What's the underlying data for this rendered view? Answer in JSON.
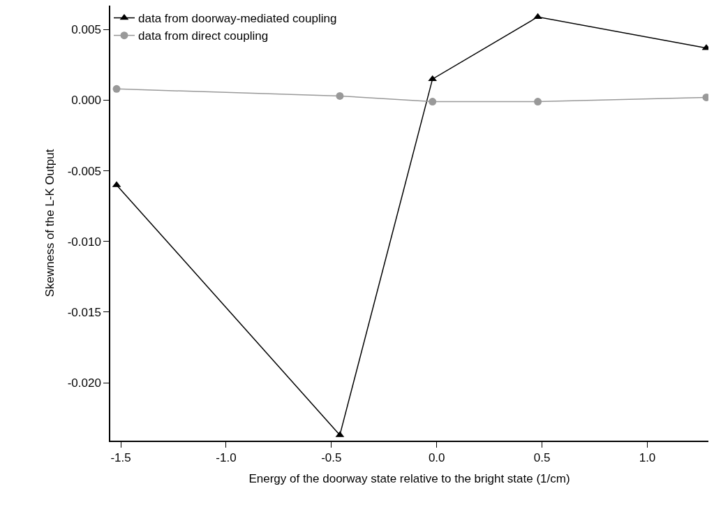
{
  "chart_data": {
    "type": "line",
    "xlabel": "Energy of the doorway state relative to the bright state (1/cm)",
    "ylabel": "Skewness of the L-K Output",
    "x": [
      -1.52,
      -0.46,
      -0.02,
      0.48,
      1.28
    ],
    "series": [
      {
        "name": "data from doorway-mediated coupling",
        "color": "#000000",
        "marker": "triangle",
        "values": [
          -0.006,
          -0.0237,
          0.0015,
          0.0059,
          0.0037
        ]
      },
      {
        "name": "data from direct coupling",
        "color": "#999999",
        "marker": "circle",
        "values": [
          0.0008,
          0.0003,
          -0.0001,
          -0.0001,
          0.0002
        ]
      }
    ],
    "xlim": [
      -1.55,
      1.29
    ],
    "ylim": [
      -0.0241,
      0.0067
    ],
    "xticks": [
      {
        "value": -1.5,
        "label": "-1.5"
      },
      {
        "value": -1.0,
        "label": "-1.0"
      },
      {
        "value": -0.5,
        "label": "-0.5"
      },
      {
        "value": 0.0,
        "label": "0.0"
      },
      {
        "value": 0.5,
        "label": "0.5"
      },
      {
        "value": 1.0,
        "label": "1.0"
      }
    ],
    "yticks": [
      {
        "value": 0.005,
        "label": "0.005"
      },
      {
        "value": 0.0,
        "label": "0.000"
      },
      {
        "value": -0.005,
        "label": "-0.005"
      },
      {
        "value": -0.01,
        "label": "-0.010"
      },
      {
        "value": -0.015,
        "label": "-0.015"
      },
      {
        "value": -0.02,
        "label": "-0.020"
      }
    ],
    "legend": "top left"
  }
}
